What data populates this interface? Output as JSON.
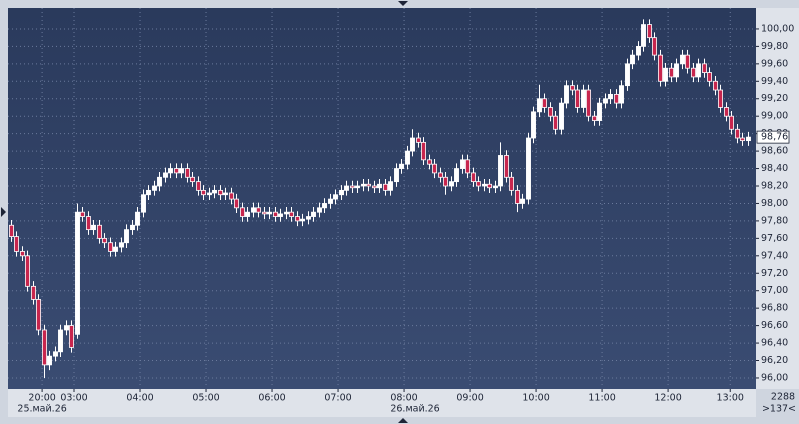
{
  "chart_data": {
    "type": "candlestick",
    "ohlc": [
      [
        97.75,
        97.81,
        97.56,
        97.62
      ],
      [
        97.62,
        97.68,
        97.39,
        97.45
      ],
      [
        97.45,
        97.51,
        97.34,
        97.4
      ],
      [
        97.4,
        97.46,
        96.99,
        97.05
      ],
      [
        97.05,
        97.11,
        96.84,
        96.9
      ],
      [
        96.9,
        96.96,
        96.49,
        96.55
      ],
      [
        96.55,
        96.61,
        96.0,
        96.15
      ],
      [
        96.15,
        96.31,
        96.09,
        96.25
      ],
      [
        96.25,
        96.36,
        96.19,
        96.3
      ],
      [
        96.3,
        96.61,
        96.24,
        96.55
      ],
      [
        96.55,
        96.66,
        96.49,
        96.6
      ],
      [
        96.6,
        96.66,
        96.29,
        96.35
      ],
      [
        96.5,
        98.0,
        96.45,
        97.9
      ],
      [
        97.9,
        97.96,
        97.79,
        97.85
      ],
      [
        97.85,
        97.91,
        97.64,
        97.7
      ],
      [
        97.7,
        97.81,
        97.64,
        97.75
      ],
      [
        97.75,
        97.81,
        97.54,
        97.6
      ],
      [
        97.6,
        97.66,
        97.49,
        97.55
      ],
      [
        97.55,
        97.61,
        97.39,
        97.45
      ],
      [
        97.45,
        97.56,
        97.39,
        97.5
      ],
      [
        97.5,
        97.61,
        97.44,
        97.55
      ],
      [
        97.55,
        97.76,
        97.49,
        97.7
      ],
      [
        97.7,
        97.81,
        97.64,
        97.75
      ],
      [
        97.75,
        97.96,
        97.69,
        97.9
      ],
      [
        97.9,
        98.16,
        97.84,
        98.1
      ],
      [
        98.1,
        98.21,
        98.04,
        98.15
      ],
      [
        98.15,
        98.26,
        98.09,
        98.2
      ],
      [
        98.2,
        98.36,
        98.14,
        98.3
      ],
      [
        98.3,
        98.41,
        98.24,
        98.35
      ],
      [
        98.35,
        98.46,
        98.29,
        98.4
      ],
      [
        98.4,
        98.46,
        98.29,
        98.35
      ],
      [
        98.35,
        98.46,
        98.29,
        98.4
      ],
      [
        98.4,
        98.46,
        98.24,
        98.3
      ],
      [
        98.3,
        98.36,
        98.19,
        98.25
      ],
      [
        98.25,
        98.31,
        98.09,
        98.15
      ],
      [
        98.15,
        98.21,
        98.04,
        98.1
      ],
      [
        98.1,
        98.18,
        98.04,
        98.12
      ],
      [
        98.12,
        98.21,
        98.06,
        98.15
      ],
      [
        98.15,
        98.21,
        98.04,
        98.1
      ],
      [
        98.1,
        98.18,
        98.04,
        98.12
      ],
      [
        98.12,
        98.18,
        97.99,
        98.05
      ],
      [
        98.05,
        98.11,
        97.89,
        97.95
      ],
      [
        97.95,
        98.01,
        97.79,
        97.85
      ],
      [
        97.85,
        97.96,
        97.79,
        97.9
      ],
      [
        97.9,
        98.01,
        97.84,
        97.95
      ],
      [
        97.95,
        98.01,
        97.84,
        97.9
      ],
      [
        97.9,
        97.96,
        97.82,
        97.88
      ],
      [
        97.88,
        97.96,
        97.82,
        97.9
      ],
      [
        97.9,
        97.96,
        97.79,
        97.85
      ],
      [
        97.85,
        97.94,
        97.79,
        97.88
      ],
      [
        97.88,
        97.96,
        97.82,
        97.9
      ],
      [
        97.9,
        97.96,
        97.79,
        97.85
      ],
      [
        97.85,
        97.91,
        97.74,
        97.8
      ],
      [
        97.8,
        97.88,
        97.74,
        97.82
      ],
      [
        97.82,
        97.91,
        97.76,
        97.85
      ],
      [
        97.85,
        97.96,
        97.79,
        97.9
      ],
      [
        97.9,
        98.01,
        97.84,
        97.95
      ],
      [
        97.95,
        98.06,
        97.89,
        98.0
      ],
      [
        98.0,
        98.11,
        97.94,
        98.05
      ],
      [
        98.05,
        98.16,
        97.99,
        98.1
      ],
      [
        98.1,
        98.21,
        98.04,
        98.15
      ],
      [
        98.15,
        98.26,
        98.09,
        98.2
      ],
      [
        98.2,
        98.26,
        98.12,
        98.18
      ],
      [
        98.18,
        98.26,
        98.12,
        98.2
      ],
      [
        98.2,
        98.28,
        98.14,
        98.22
      ],
      [
        98.22,
        98.28,
        98.14,
        98.2
      ],
      [
        98.2,
        98.26,
        98.12,
        98.18
      ],
      [
        98.18,
        98.28,
        98.12,
        98.22
      ],
      [
        98.22,
        98.28,
        98.09,
        98.15
      ],
      [
        98.15,
        98.31,
        98.09,
        98.25
      ],
      [
        98.25,
        98.46,
        98.19,
        98.4
      ],
      [
        98.4,
        98.51,
        98.34,
        98.45
      ],
      [
        98.45,
        98.66,
        98.39,
        98.6
      ],
      [
        98.6,
        98.85,
        98.54,
        98.75
      ],
      [
        98.75,
        98.81,
        98.64,
        98.7
      ],
      [
        98.7,
        98.76,
        98.44,
        98.5
      ],
      [
        98.5,
        98.56,
        98.39,
        98.45
      ],
      [
        98.45,
        98.51,
        98.29,
        98.35
      ],
      [
        98.35,
        98.41,
        98.24,
        98.3
      ],
      [
        98.3,
        98.36,
        98.1,
        98.2
      ],
      [
        98.2,
        98.31,
        98.14,
        98.25
      ],
      [
        98.25,
        98.46,
        98.19,
        98.4
      ],
      [
        98.4,
        98.56,
        98.34,
        98.5
      ],
      [
        98.5,
        98.56,
        98.29,
        98.35
      ],
      [
        98.35,
        98.41,
        98.19,
        98.25
      ],
      [
        98.25,
        98.31,
        98.14,
        98.2
      ],
      [
        98.2,
        98.28,
        98.14,
        98.22
      ],
      [
        98.22,
        98.28,
        98.12,
        98.18
      ],
      [
        98.18,
        98.26,
        98.12,
        98.2
      ],
      [
        98.2,
        98.7,
        98.14,
        98.55
      ],
      [
        98.55,
        98.61,
        98.24,
        98.3
      ],
      [
        98.3,
        98.36,
        98.09,
        98.15
      ],
      [
        98.15,
        98.21,
        97.9,
        98.0
      ],
      [
        98.0,
        98.11,
        97.94,
        98.05
      ],
      [
        98.05,
        98.81,
        97.99,
        98.75
      ],
      [
        98.75,
        99.11,
        98.69,
        99.05
      ],
      [
        99.05,
        99.36,
        98.99,
        99.2
      ],
      [
        99.2,
        99.26,
        99.04,
        99.1
      ],
      [
        99.1,
        99.16,
        98.94,
        99.0
      ],
      [
        99.0,
        99.06,
        98.79,
        98.85
      ],
      [
        98.85,
        99.21,
        98.79,
        99.15
      ],
      [
        99.15,
        99.41,
        99.09,
        99.35
      ],
      [
        99.35,
        99.41,
        99.24,
        99.3
      ],
      [
        99.3,
        99.36,
        99.04,
        99.1
      ],
      [
        99.1,
        99.36,
        99.04,
        99.3
      ],
      [
        99.3,
        99.36,
        98.94,
        99.0
      ],
      [
        99.0,
        99.06,
        98.89,
        98.95
      ],
      [
        98.95,
        99.21,
        98.89,
        99.15
      ],
      [
        99.15,
        99.26,
        99.09,
        99.2
      ],
      [
        99.2,
        99.31,
        99.14,
        99.25
      ],
      [
        99.25,
        99.31,
        99.09,
        99.15
      ],
      [
        99.15,
        99.41,
        99.09,
        99.35
      ],
      [
        99.35,
        99.66,
        99.29,
        99.6
      ],
      [
        99.6,
        99.76,
        99.54,
        99.7
      ],
      [
        99.7,
        99.86,
        99.64,
        99.8
      ],
      [
        99.8,
        100.11,
        99.74,
        100.05
      ],
      [
        100.05,
        100.11,
        99.84,
        99.9
      ],
      [
        99.9,
        99.96,
        99.64,
        99.7
      ],
      [
        99.7,
        99.76,
        99.34,
        99.4
      ],
      [
        99.4,
        99.61,
        99.34,
        99.55
      ],
      [
        99.55,
        99.61,
        99.39,
        99.45
      ],
      [
        99.45,
        99.66,
        99.39,
        99.6
      ],
      [
        99.6,
        99.76,
        99.54,
        99.7
      ],
      [
        99.7,
        99.76,
        99.49,
        99.55
      ],
      [
        99.55,
        99.61,
        99.39,
        99.45
      ],
      [
        99.45,
        99.66,
        99.39,
        99.6
      ],
      [
        99.6,
        99.66,
        99.44,
        99.5
      ],
      [
        99.5,
        99.56,
        99.34,
        99.4
      ],
      [
        99.4,
        99.46,
        99.24,
        99.3
      ],
      [
        99.3,
        99.36,
        99.04,
        99.1
      ],
      [
        99.1,
        99.16,
        98.94,
        99.0
      ],
      [
        99.0,
        99.06,
        98.79,
        98.85
      ],
      [
        98.85,
        98.91,
        98.69,
        98.75
      ],
      [
        98.75,
        98.81,
        98.66,
        98.72
      ],
      [
        98.72,
        98.82,
        98.66,
        98.76
      ]
    ],
    "up_color": "#ffffff",
    "down_color": "#c8264e",
    "xlim": [
      -0.5,
      135.3
    ],
    "xticks": [
      {
        "value": 5.7,
        "label": "20:00"
      },
      {
        "value": 11.5,
        "label": "03:00"
      },
      {
        "value": 23.5,
        "label": "04:00"
      },
      {
        "value": 35.5,
        "label": "05:00"
      },
      {
        "value": 47.5,
        "label": "06:00"
      },
      {
        "value": 59.5,
        "label": "07:00"
      },
      {
        "value": 71.5,
        "label": "08:00"
      },
      {
        "value": 83.5,
        "label": "09:00"
      },
      {
        "value": 95.5,
        "label": "10:00"
      },
      {
        "value": 107.5,
        "label": "11:00"
      },
      {
        "value": 119.5,
        "label": "12:00"
      },
      {
        "value": 130.8,
        "label": "13:00"
      }
    ],
    "date_labels": [
      {
        "value": 5.7,
        "label": "25.май.26"
      },
      {
        "value": 73.5,
        "label": "26.май.26"
      }
    ],
    "ylim": [
      95.885,
      100.24
    ],
    "yticks": [
      {
        "value": 96.0,
        "label": "96,00"
      },
      {
        "value": 96.2,
        "label": "96,20"
      },
      {
        "value": 96.4,
        "label": "96,40"
      },
      {
        "value": 96.6,
        "label": "96,60"
      },
      {
        "value": 96.8,
        "label": "96,80"
      },
      {
        "value": 97.0,
        "label": "97,00"
      },
      {
        "value": 97.2,
        "label": "97,20"
      },
      {
        "value": 97.4,
        "label": "97,40"
      },
      {
        "value": 97.6,
        "label": "97,60"
      },
      {
        "value": 97.8,
        "label": "97,80"
      },
      {
        "value": 98.0,
        "label": "98,00"
      },
      {
        "value": 98.2,
        "label": "98,20"
      },
      {
        "value": 98.4,
        "label": "98,40"
      },
      {
        "value": 98.6,
        "label": "98,60"
      },
      {
        "value": 98.8,
        "label": "98,80"
      },
      {
        "value": 99.0,
        "label": "99,00"
      },
      {
        "value": 99.2,
        "label": "99,20"
      },
      {
        "value": 99.4,
        "label": "99,40"
      },
      {
        "value": 99.6,
        "label": "99,60"
      },
      {
        "value": 99.8,
        "label": "99,80"
      },
      {
        "value": 100.0,
        "label": "100,00"
      }
    ],
    "last_price": {
      "value": 98.76,
      "label": "98,76"
    },
    "grid": true,
    "bar_count": 2288,
    "visible_label": ">137<"
  }
}
